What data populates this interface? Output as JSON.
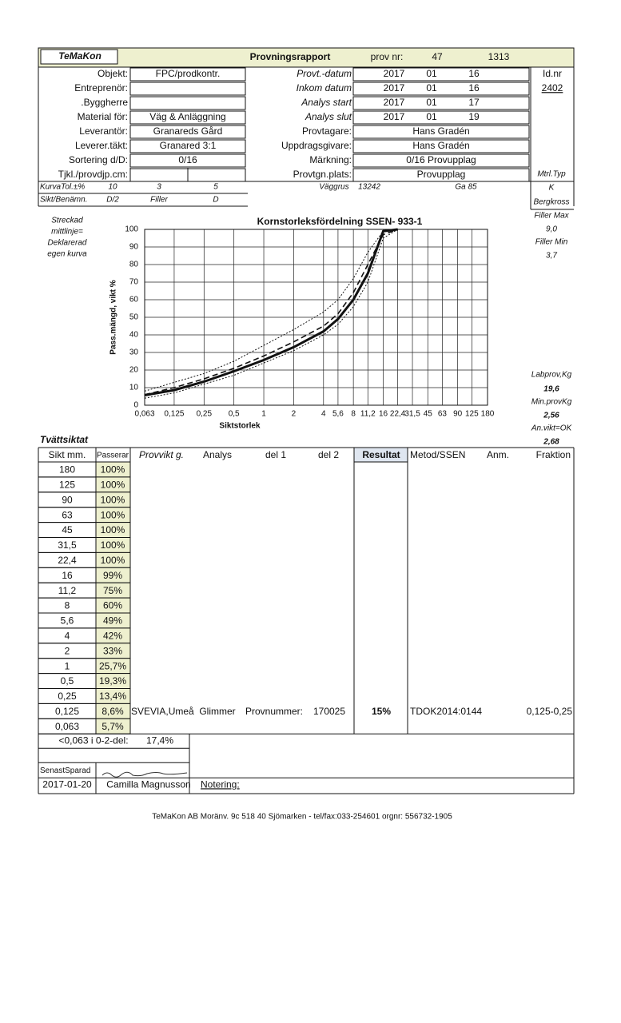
{
  "header": {
    "logo": "TeMaKon",
    "title": "Provningsrapport",
    "prov_nr_label": "prov nr:",
    "prov_nr": "47",
    "report_nr": "1313"
  },
  "sample": {
    "rows": [
      {
        "label": "Objekt:",
        "value": "FPC/prodkontr."
      },
      {
        "label": "Entreprenör:"
      },
      {
        "label": ".Byggherre"
      },
      {
        "label": "Material för:",
        "value": "Väg & Anläggning"
      },
      {
        "label": "Leverantör:",
        "value": "Granareds Gård"
      },
      {
        "label": "Leverer.täkt:",
        "value": "Granared 3:1"
      },
      {
        "label": "Sortering d/D:",
        "value": "0/16"
      },
      {
        "label": "Tjkl./provdjp.cm:"
      }
    ]
  },
  "analysis": {
    "rows": [
      {
        "label": "Provt.-datum",
        "year": "2017",
        "month": "01",
        "day": "16"
      },
      {
        "label": "Inkom datum",
        "year": "2017",
        "month": "01",
        "day": "16"
      },
      {
        "label": "Analys start",
        "year": "2017",
        "month": "01",
        "day": "17"
      },
      {
        "label": "Analys slut",
        "year": "2017",
        "month": "01",
        "day": "19"
      },
      {
        "label": "Provtagare:",
        "value": "Hans Gradén"
      },
      {
        "label": "Uppdragsgivare:",
        "value": "Hans Gradén"
      },
      {
        "label": "Märkning:",
        "value": "0/16 Provupplag"
      },
      {
        "label": "Provtgn.plats:",
        "value": "Provupplag"
      }
    ]
  },
  "side": {
    "id_label": "Id.nr",
    "id": "2402",
    "items": [
      "Mtrl.Typ",
      "K",
      "Bergkross",
      "Filler Max",
      "9,0",
      "Filler Min",
      "3,7",
      "Labprov,Kg",
      "19,6",
      "Min.provKg",
      "2,56",
      "An.vikt=OK",
      "2,68"
    ]
  },
  "tolerance": {
    "label": "KurvaTol.±%",
    "values": [
      "10",
      "3",
      "5"
    ],
    "material": "Väggrus",
    "material_nr": "13242",
    "ga": "Ga 85"
  },
  "designation": {
    "label": "Sikt/Benämn.",
    "values": [
      "D/2",
      "Filler",
      "D"
    ]
  },
  "chart_note": [
    "Streckad",
    "mittlinje=",
    "Deklarerad",
    "egen kurva"
  ],
  "chart_data": {
    "type": "line",
    "title": "Kornstorleksfördelning SSEN- 933-1",
    "xlabel": "Siktstorlek",
    "ylabel": "Pass.mängd, vikt %",
    "log_x": true,
    "grid": true,
    "xlim": [
      0.063,
      180
    ],
    "ylim": [
      0,
      100
    ],
    "xticks": [
      {
        "value": 0.063,
        "label": "0,063"
      },
      {
        "value": 0.125,
        "label": "0,125"
      },
      {
        "value": 0.25,
        "label": "0,25"
      },
      {
        "value": 0.5,
        "label": "0,5"
      },
      1,
      2,
      4,
      {
        "value": 5.6,
        "label": "5,6"
      },
      8,
      {
        "value": 11.2,
        "label": "11,2"
      },
      16,
      {
        "value": 22.4,
        "label": "22,4"
      },
      {
        "value": 31.5,
        "label": "31,5"
      },
      45,
      63,
      90,
      125,
      180
    ],
    "yticks": [
      0,
      10,
      20,
      30,
      40,
      50,
      60,
      70,
      80,
      90,
      100
    ],
    "x": [
      0.063,
      0.125,
      0.25,
      0.5,
      1,
      2,
      4,
      5.6,
      8,
      11.2,
      16,
      22.4
    ],
    "series": [
      {
        "color": "#111111",
        "style": "dotted",
        "values": [
          8,
          13,
          18,
          25,
          34,
          43,
          53,
          60,
          72,
          87,
          99,
          100
        ]
      },
      {
        "color": "#111111",
        "style": "dotted",
        "values": [
          4,
          7,
          12,
          17,
          24,
          31,
          40,
          46,
          56,
          70,
          95,
          100
        ]
      },
      {
        "color": "#111111",
        "style": "dashed",
        "values": [
          6,
          10,
          15,
          21,
          28,
          36,
          45,
          52,
          64,
          80,
          97,
          100
        ]
      },
      {
        "color": "#111111",
        "style": "solid",
        "values": [
          5.7,
          8.6,
          13.4,
          19.3,
          25.7,
          33,
          42,
          49,
          60,
          75,
          99,
          100
        ]
      }
    ]
  },
  "section": "Tvättsiktat",
  "table": {
    "headers": [
      "Sikt mm.",
      "Passerar",
      "Provvikt g.",
      "Analys",
      "del 1",
      "del 2",
      "Resultat",
      "Metod/SSEN",
      "Anm.",
      "Fraktion"
    ],
    "rows": [
      [
        "180",
        "100%"
      ],
      [
        "125",
        "100%"
      ],
      [
        "90",
        "100%"
      ],
      [
        "63",
        "100%"
      ],
      [
        "45",
        "100%"
      ],
      [
        "31,5",
        "100%"
      ],
      [
        "22,4",
        "100%"
      ],
      [
        "16",
        "99%"
      ],
      [
        "11,2",
        "75%"
      ],
      [
        "8",
        "60%"
      ],
      [
        "5,6",
        "49%"
      ],
      [
        "4",
        "42%"
      ],
      [
        "2",
        "33%"
      ],
      [
        "1",
        "25,7%"
      ],
      [
        "0,5",
        "19,3%"
      ],
      [
        "0,25",
        "13,4%"
      ],
      [
        "0,125",
        "8,6%"
      ],
      [
        "0,063",
        "5,7%"
      ]
    ],
    "details": {
      "company": "SVEVIA,Umeå",
      "analysis": "Glimmer",
      "sample_label": "Provnummer:",
      "sample_nr": "170025",
      "result": "15%",
      "method": "TDOK2014:0144",
      "fraction": "0,125-0,25"
    }
  },
  "fines": {
    "label": "<0,063 i 0-2-del:",
    "value": "17,4%"
  },
  "signature": {
    "label": "SenastSparad",
    "date": "2017-01-20",
    "name": "Camilla Magnusson"
  },
  "notes_label": "Notering:",
  "footer": "TeMaKon AB Moränv. 9c 518 40 Sjömarken - tel/fax:033-254601 orgnr: 556732-1905"
}
